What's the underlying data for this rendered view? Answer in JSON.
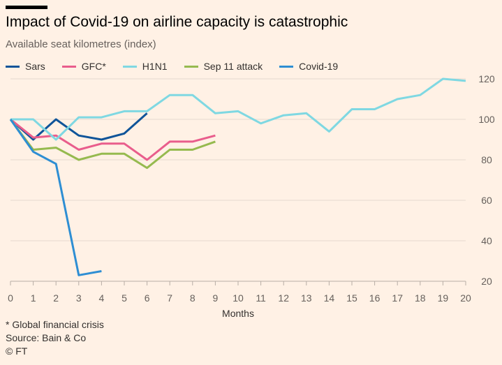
{
  "header": {
    "title": "Impact of Covid-19 on airline capacity is catastrophic",
    "subtitle": "Available seat kilometres (index)"
  },
  "footer": {
    "note": "* Global financial crisis",
    "source": "Source: Bain & Co",
    "credit": "© FT"
  },
  "chart_data": {
    "type": "line",
    "title": "Impact of Covid-19 on airline capacity is catastrophic",
    "subtitle": "Available seat kilometres (index)",
    "xlabel": "Months",
    "ylabel": "",
    "xlim": [
      0,
      20
    ],
    "ylim": [
      20,
      120
    ],
    "xticks": [
      0,
      1,
      2,
      3,
      4,
      5,
      6,
      7,
      8,
      9,
      10,
      11,
      12,
      13,
      14,
      15,
      16,
      17,
      18,
      19,
      20
    ],
    "yticks": [
      20,
      40,
      60,
      80,
      100,
      120
    ],
    "grid": "horizontal",
    "legend_position": "top",
    "series": [
      {
        "name": "Sars",
        "color": "#0F5499",
        "x": [
          0,
          1,
          2,
          3,
          4,
          5,
          6
        ],
        "values": [
          100,
          90,
          100,
          92,
          90,
          93,
          103
        ]
      },
      {
        "name": "GFC*",
        "color": "#E95D8C",
        "x": [
          0,
          1,
          2,
          3,
          4,
          5,
          6,
          7,
          8,
          9
        ],
        "values": [
          100,
          91,
          92,
          85,
          88,
          88,
          80,
          89,
          89,
          92
        ]
      },
      {
        "name": "H1N1",
        "color": "#7FD8E2",
        "x": [
          0,
          1,
          2,
          3,
          4,
          5,
          6,
          7,
          8,
          9,
          10,
          11,
          12,
          13,
          14,
          15,
          16,
          17,
          18,
          19,
          20
        ],
        "values": [
          100,
          100,
          90,
          101,
          101,
          104,
          104,
          112,
          112,
          103,
          104,
          98,
          102,
          103,
          94,
          105,
          105,
          110,
          112,
          120,
          119
        ]
      },
      {
        "name": "Sep 11 attack",
        "color": "#96BA4F",
        "x": [
          0,
          1,
          2,
          3,
          4,
          5,
          6,
          7,
          8,
          9
        ],
        "values": [
          100,
          85,
          86,
          80,
          83,
          83,
          76,
          85,
          85,
          89
        ]
      },
      {
        "name": "Covid-19",
        "color": "#2E8ED3",
        "x": [
          0,
          1,
          2,
          3,
          4
        ],
        "values": [
          100,
          84,
          78,
          23,
          25
        ]
      }
    ]
  }
}
